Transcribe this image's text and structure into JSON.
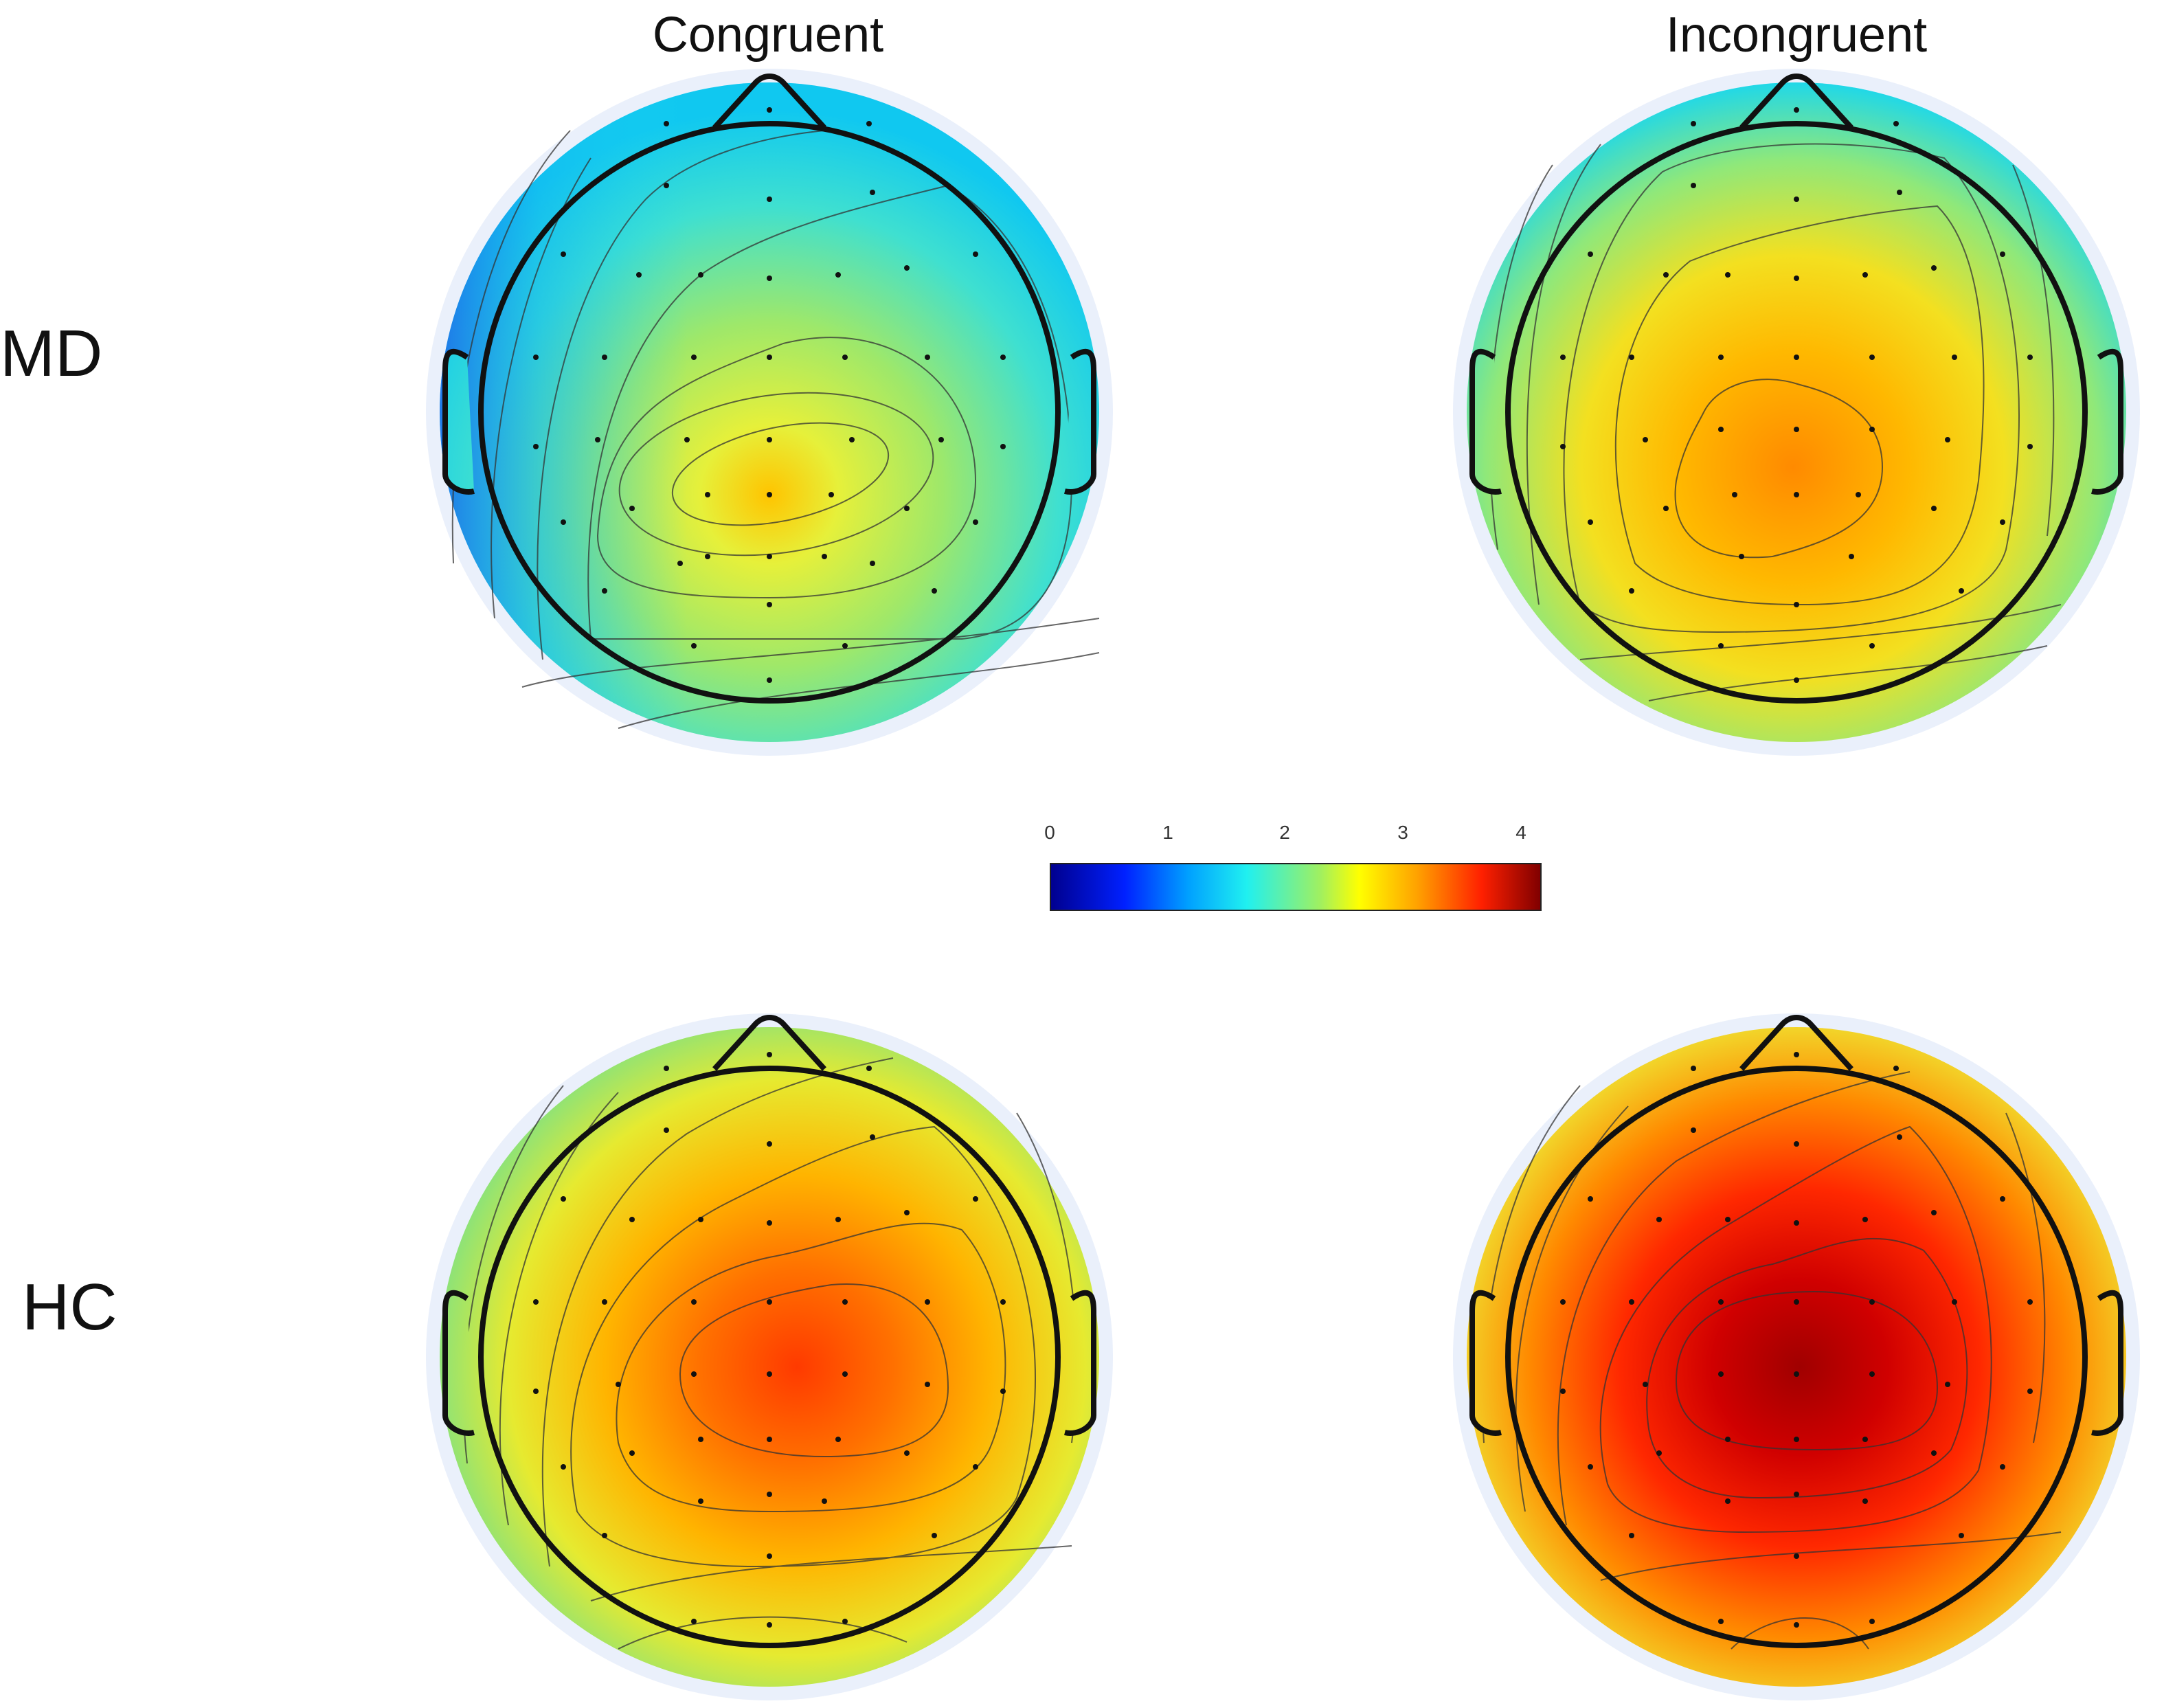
{
  "columns": [
    "Congruent",
    "Incongruent"
  ],
  "rows": [
    "MD",
    "HC"
  ],
  "colorbar": {
    "ticks": [
      "0",
      "1",
      "2",
      "3",
      "4"
    ],
    "min": 0,
    "max": 4,
    "colormap": "jet"
  },
  "maps": [
    {
      "group": "MD",
      "condition": "Congruent",
      "peak_value": 2.8,
      "peak_location": "central-parietal"
    },
    {
      "group": "MD",
      "condition": "Incongruent",
      "peak_value": 3.2,
      "peak_location": "central-parietal"
    },
    {
      "group": "HC",
      "condition": "Congruent",
      "peak_value": 3.5,
      "peak_location": "central-parietal"
    },
    {
      "group": "HC",
      "condition": "Incongruent",
      "peak_value": 4.0,
      "peak_location": "central-parietal"
    }
  ]
}
